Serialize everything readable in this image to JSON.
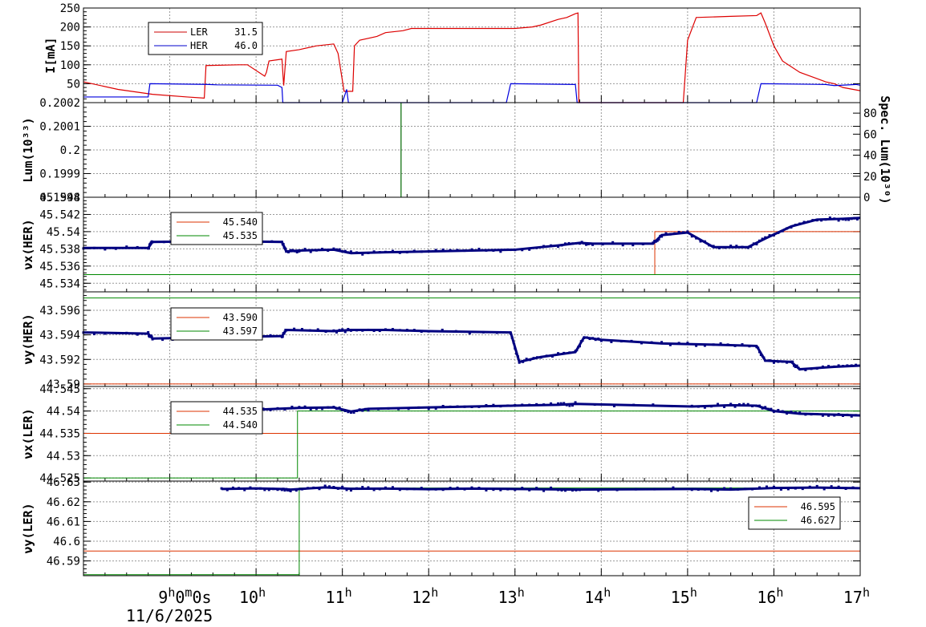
{
  "chart_data": [
    {
      "id": "current",
      "type": "line",
      "ylabel": "I[mA]",
      "ylim": [
        0,
        250
      ],
      "yticks": [
        "50",
        "100",
        "150",
        "200",
        "250"
      ],
      "yticks_values": [
        50,
        100,
        150,
        200,
        250
      ],
      "legend": [
        {
          "name": "LER",
          "value": "31.5",
          "color": "#cc0000"
        },
        {
          "name": "HER",
          "value": "46.0",
          "color": "#0000cc"
        }
      ],
      "series": [
        {
          "name": "LER",
          "color": "#dd0000",
          "x": [
            8.0,
            8.4,
            8.8,
            9.2,
            9.4,
            9.42,
            9.8,
            9.9,
            10.1,
            10.12,
            10.15,
            10.3,
            10.32,
            10.35,
            10.5,
            10.7,
            10.9,
            10.95,
            11.02,
            11.12,
            11.14,
            11.2,
            11.4,
            11.5,
            11.7,
            11.8,
            12.5,
            13.0,
            13.2,
            13.3,
            13.5,
            13.6,
            13.7,
            13.73,
            13.74,
            14.95,
            15.0,
            15.1,
            15.5,
            15.8,
            15.85,
            15.9,
            16.0,
            16.1,
            16.3,
            16.6,
            16.7,
            16.8,
            17.0
          ],
          "y": [
            55,
            35,
            22,
            15,
            12,
            98,
            100,
            100,
            70,
            80,
            110,
            115,
            45,
            135,
            140,
            150,
            155,
            130,
            30,
            30,
            150,
            165,
            175,
            185,
            190,
            196,
            196,
            196,
            200,
            205,
            220,
            225,
            235,
            237,
            0,
            0,
            165,
            225,
            228,
            230,
            237,
            210,
            150,
            110,
            80,
            55,
            50,
            40,
            31.5
          ]
        },
        {
          "name": "HER",
          "color": "#0000dd",
          "x": [
            8.0,
            8.75,
            8.77,
            9.45,
            9.55,
            10.25,
            10.3,
            10.31,
            11.0,
            11.05,
            11.07,
            11.1,
            11.12,
            12.9,
            12.95,
            13.7,
            13.72,
            15.8,
            15.85,
            16.6,
            16.7,
            16.95,
            17.0
          ],
          "y": [
            15,
            15,
            50,
            48,
            47,
            46,
            40,
            0,
            0,
            35,
            0,
            0,
            0,
            0,
            50,
            48,
            0,
            0,
            50,
            48,
            45,
            48,
            46.0
          ]
        }
      ]
    },
    {
      "id": "luminosity",
      "type": "line",
      "ylabel": "Lum(10³³)",
      "ylim": [
        0.1998,
        0.2002
      ],
      "yticks": [
        "0.1998",
        "0.1999",
        "0.2",
        "0.2001",
        "0.2002"
      ],
      "yticks_values": [
        0.1998,
        0.1999,
        0.2,
        0.2001,
        0.2002
      ],
      "y2label": "Spec. Lum(10³⁰)",
      "y2lim": [
        0,
        90
      ],
      "y2ticks": [
        "0",
        "20",
        "40",
        "60",
        "80"
      ],
      "y2ticks_values": [
        0,
        20,
        40,
        60,
        80
      ],
      "series": [
        {
          "name": "",
          "color": "#006600",
          "x": [
            11.68,
            11.68
          ],
          "y": [
            0.1998,
            0.2002
          ]
        }
      ]
    },
    {
      "id": "nux_her",
      "type": "scatter",
      "ylabel": "νx(HER)",
      "ylim": [
        45.533,
        45.544
      ],
      "yticks": [
        "45.534",
        "45.536",
        "45.538",
        "45.54",
        "45.542",
        "45.544"
      ],
      "yticks_values": [
        45.534,
        45.536,
        45.538,
        45.54,
        45.542,
        45.544
      ],
      "legend": [
        {
          "name": "",
          "value": "45.540",
          "color": "#dd3300"
        },
        {
          "name": "",
          "value": "45.535",
          "color": "#008800"
        }
      ],
      "setpoints": [
        {
          "color": "#dd3300",
          "x": [
            8.0,
            14.62,
            14.62,
            17.0
          ],
          "y": [
            45.535,
            45.535,
            45.54,
            45.54
          ]
        },
        {
          "color": "#008800",
          "x": [
            8.0,
            17.0
          ],
          "y": [
            45.535,
            45.535
          ]
        }
      ],
      "measured": {
        "color": "#000080",
        "x": [
          8.0,
          8.75,
          8.8,
          9.6,
          10.3,
          10.35,
          10.5,
          10.9,
          11.1,
          11.5,
          12.0,
          12.5,
          13.0,
          13.5,
          13.75,
          13.9,
          14.6,
          14.7,
          15.0,
          15.3,
          15.7,
          15.9,
          16.2,
          16.5,
          16.8,
          17.0
        ],
        "y": [
          45.5381,
          45.5381,
          45.5388,
          45.5389,
          45.5388,
          45.5377,
          45.5378,
          45.5379,
          45.5375,
          45.5376,
          45.5377,
          45.5378,
          45.5379,
          45.5384,
          45.5387,
          45.5386,
          45.5386,
          45.5396,
          45.5399,
          45.5382,
          45.5382,
          45.5392,
          45.5406,
          45.5414,
          45.5415,
          45.5416
        ]
      }
    },
    {
      "id": "nuy_her",
      "type": "scatter",
      "ylabel": "νy(HER)",
      "ylim": [
        43.5898,
        43.5975
      ],
      "yticks": [
        "43.59",
        "43.592",
        "43.594",
        "43.596"
      ],
      "yticks_values": [
        43.59,
        43.592,
        43.594,
        43.596
      ],
      "legend": [
        {
          "name": "",
          "value": "43.590",
          "color": "#dd3300"
        },
        {
          "name": "",
          "value": "43.597",
          "color": "#008800"
        }
      ],
      "setpoints": [
        {
          "color": "#dd3300",
          "x": [
            8.0,
            17.0
          ],
          "y": [
            43.59,
            43.59
          ]
        },
        {
          "color": "#008800",
          "x": [
            8.0,
            17.0
          ],
          "y": [
            43.597,
            43.597
          ]
        }
      ],
      "measured": {
        "color": "#000080",
        "x": [
          8.0,
          8.75,
          8.8,
          9.5,
          10.3,
          10.35,
          10.9,
          11.1,
          11.5,
          12.0,
          12.95,
          13.05,
          13.3,
          13.7,
          13.8,
          14.0,
          14.7,
          15.3,
          15.8,
          15.9,
          16.2,
          16.3,
          16.7,
          17.0
        ],
        "y": [
          43.5942,
          43.5941,
          43.5937,
          43.5938,
          43.5939,
          43.5944,
          43.5943,
          43.5944,
          43.5944,
          43.5943,
          43.5942,
          43.5918,
          43.5922,
          43.5926,
          43.5938,
          43.5936,
          43.5933,
          43.5932,
          43.5931,
          43.5919,
          43.5918,
          43.5912,
          43.5914,
          43.5915
        ]
      }
    },
    {
      "id": "nux_ler",
      "type": "scatter",
      "ylabel": "νx(LER)",
      "ylim": [
        44.5243,
        44.5455
      ],
      "yticks": [
        "44.525",
        "44.53",
        "44.535",
        "44.54",
        "44.545"
      ],
      "yticks_values": [
        44.525,
        44.53,
        44.535,
        44.54,
        44.545
      ],
      "legend": [
        {
          "name": "",
          "value": "44.535",
          "color": "#dd3300"
        },
        {
          "name": "",
          "value": "44.540",
          "color": "#008800"
        }
      ],
      "setpoints": [
        {
          "color": "#dd3300",
          "x": [
            8.0,
            17.0
          ],
          "y": [
            44.535,
            44.535
          ]
        },
        {
          "color": "#008800",
          "x": [
            8.0,
            10.48,
            10.48,
            17.0
          ],
          "y": [
            44.525,
            44.525,
            44.54,
            44.54
          ]
        }
      ],
      "measured": {
        "color": "#000080",
        "x": [
          9.45,
          10.0,
          10.5,
          10.9,
          11.1,
          11.3,
          12.0,
          12.5,
          13.0,
          13.5,
          13.7,
          15.05,
          15.5,
          15.8,
          16.0,
          16.3,
          16.7,
          17.0
        ],
        "y": [
          44.5398,
          44.5403,
          44.5407,
          44.5408,
          44.5399,
          44.5405,
          44.5408,
          44.541,
          44.5412,
          44.5414,
          44.5416,
          44.541,
          44.5413,
          44.5412,
          44.54,
          44.5394,
          44.5392,
          44.539
        ]
      }
    },
    {
      "id": "nuy_ler",
      "type": "scatter",
      "ylabel": "νy(LER)",
      "ylim": [
        46.5825,
        46.6305
      ],
      "yticks": [
        "46.59",
        "46.6",
        "46.61",
        "46.62",
        "46.63"
      ],
      "yticks_values": [
        46.59,
        46.6,
        46.61,
        46.62,
        46.63
      ],
      "legend": [
        {
          "name": "",
          "value": "46.595",
          "color": "#dd3300"
        },
        {
          "name": "",
          "value": "46.627",
          "color": "#008800"
        }
      ],
      "setpoints": [
        {
          "color": "#dd3300",
          "x": [
            8.0,
            17.0
          ],
          "y": [
            46.595,
            46.595
          ]
        },
        {
          "color": "#008800",
          "x": [
            8.0,
            10.5,
            10.5,
            17.0
          ],
          "y": [
            46.583,
            46.583,
            46.627,
            46.627
          ]
        }
      ],
      "measured": {
        "color": "#000080",
        "x": [
          9.6,
          10.0,
          10.3,
          10.4,
          10.8,
          11.1,
          11.5,
          12.0,
          12.5,
          13.0,
          13.5,
          13.75,
          15.05,
          15.5,
          16.0,
          16.5,
          17.0
        ],
        "y": [
          46.6265,
          46.6268,
          46.6265,
          46.6262,
          46.6273,
          46.6266,
          46.6267,
          46.6264,
          46.6267,
          46.6265,
          46.6263,
          46.6262,
          46.6265,
          46.6262,
          46.627,
          46.6272,
          46.6269
        ]
      }
    }
  ],
  "x_axis": {
    "xlim": [
      8.0,
      17.0
    ],
    "ticks": [
      {
        "x": 9,
        "label": "9",
        "sup": "h",
        "extra": "0",
        "extra_sup": "m",
        "extra2": "0s"
      },
      {
        "x": 10,
        "label": "10",
        "sup": "h"
      },
      {
        "x": 11,
        "label": "11",
        "sup": "h"
      },
      {
        "x": 12,
        "label": "12",
        "sup": "h"
      },
      {
        "x": 13,
        "label": "13",
        "sup": "h"
      },
      {
        "x": 14,
        "label": "14",
        "sup": "h"
      },
      {
        "x": 15,
        "label": "15",
        "sup": "h"
      },
      {
        "x": 16,
        "label": "16",
        "sup": "h"
      },
      {
        "x": 17,
        "label": "17",
        "sup": "h"
      }
    ],
    "date_label": "11/6/2025"
  }
}
